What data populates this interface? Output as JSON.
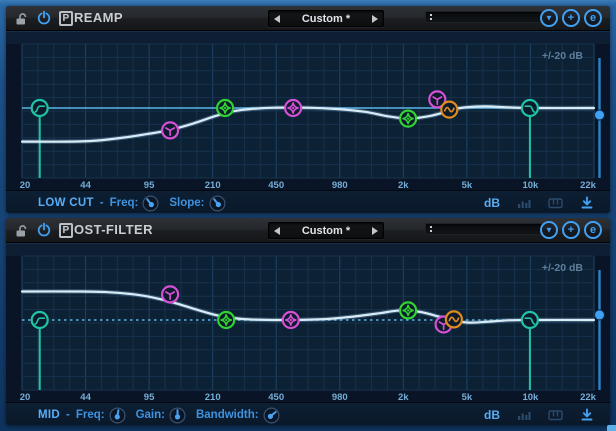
{
  "colors": {
    "teal": "#20c3a6",
    "green": "#31d431",
    "magenta": "#d650d6",
    "orange": "#de8b1f",
    "zero_line": "#5ab5e8",
    "curve": "#d8ecf8",
    "curve_glow": "#8fc5e8",
    "display_bg": "#091526",
    "grid_bg": "#0d2134",
    "grid_major": "#1e4467",
    "grid_minor": "#16324d",
    "axis_text": "#74add6",
    "range_text": "#5f7d98",
    "accent_blue": "#42a0f2",
    "slider_track": "#2b84c6",
    "handle_fill": "#0c1b2c",
    "dim_icon": "#2a4a6b"
  },
  "panels": [
    {
      "title_box": "P",
      "title_rest": "REAMP",
      "preset": {
        "value": "Custom *"
      },
      "header_buttons": {
        "dropdown_glyph": "▼",
        "add_glyph": "+",
        "edit_glyph": "e"
      },
      "display": {
        "range_label": "+/-20 dB",
        "zero_line_style": "solid",
        "axis_ticks": [
          "20",
          "44",
          "95",
          "210",
          "450",
          "980",
          "2k",
          "5k",
          "10k",
          "22k"
        ],
        "output_slider_db": -2.2,
        "curve_db": [
          [
            0,
            -10.5
          ],
          [
            0.08,
            -10.5
          ],
          [
            0.13,
            -10.2
          ],
          [
            0.18,
            -9.2
          ],
          [
            0.23,
            -7.8
          ],
          [
            0.26,
            -6.8
          ],
          [
            0.3,
            -4.8
          ],
          [
            0.34,
            -2.4
          ],
          [
            0.37,
            -1.0
          ],
          [
            0.4,
            -0.3
          ],
          [
            0.44,
            0.1
          ],
          [
            0.5,
            0.1
          ],
          [
            0.55,
            -0.3
          ],
          [
            0.6,
            -1.2
          ],
          [
            0.64,
            -2.6
          ],
          [
            0.675,
            -3.3
          ],
          [
            0.71,
            -2.6
          ],
          [
            0.735,
            -1.5
          ],
          [
            0.75,
            -0.6
          ],
          [
            0.775,
            0.2
          ],
          [
            0.81,
            0.5
          ],
          [
            0.85,
            0.2
          ],
          [
            0.89,
            0
          ],
          [
            1,
            0
          ]
        ],
        "handles": [
          {
            "band": "low-cut",
            "shape": "lowcut",
            "color": "teal",
            "x": 0.031,
            "db": 0,
            "vline": true
          },
          {
            "band": "low-mid",
            "shape": "y",
            "color": "magenta",
            "x": 0.259,
            "db": -7
          },
          {
            "band": "mid-1",
            "shape": "peak",
            "color": "green",
            "x": 0.355,
            "db": 0
          },
          {
            "band": "mid-2",
            "shape": "peak",
            "color": "magenta",
            "x": 0.474,
            "db": 0
          },
          {
            "band": "high-mid-1",
            "shape": "peak",
            "color": "green",
            "x": 0.675,
            "db": -3.3
          },
          {
            "band": "high-mid-2",
            "shape": "y",
            "color": "magenta",
            "x": 0.726,
            "db": 2.7
          },
          {
            "band": "high",
            "shape": "sine",
            "color": "orange",
            "x": 0.747,
            "db": -0.5
          },
          {
            "band": "high-cut",
            "shape": "highcut",
            "color": "teal",
            "x": 0.888,
            "db": 0,
            "vline": true
          }
        ]
      },
      "footer": {
        "band_label": "LOW CUT",
        "separator": "-",
        "params": [
          {
            "label": "Freq:",
            "knob_angle": -38
          },
          {
            "label": "Slope:",
            "knob_angle": -38
          }
        ],
        "db_label": "dB"
      }
    },
    {
      "title_box": "P",
      "title_rest": "OST-FILTER",
      "preset": {
        "value": "Custom *"
      },
      "header_buttons": {
        "dropdown_glyph": "▼",
        "add_glyph": "+",
        "edit_glyph": "e"
      },
      "display": {
        "range_label": "+/-20 dB",
        "zero_line_style": "dashed",
        "axis_ticks": [
          "20",
          "44",
          "95",
          "210",
          "450",
          "980",
          "2k",
          "5k",
          "10k",
          "22k"
        ],
        "output_slider_db": 1.6,
        "curve_db": [
          [
            0,
            8.9
          ],
          [
            0.1,
            8.9
          ],
          [
            0.15,
            8.7
          ],
          [
            0.2,
            7.9
          ],
          [
            0.24,
            6.6
          ],
          [
            0.27,
            5.2
          ],
          [
            0.31,
            3.0
          ],
          [
            0.34,
            1.5
          ],
          [
            0.37,
            0.6
          ],
          [
            0.4,
            0.15
          ],
          [
            0.45,
            0
          ],
          [
            0.52,
            0.2
          ],
          [
            0.57,
            0.9
          ],
          [
            0.62,
            2.0
          ],
          [
            0.655,
            2.9
          ],
          [
            0.675,
            3.0
          ],
          [
            0.7,
            2.4
          ],
          [
            0.73,
            1.0
          ],
          [
            0.755,
            -0.2
          ],
          [
            0.78,
            -0.8
          ],
          [
            0.81,
            -0.6
          ],
          [
            0.85,
            -0.1
          ],
          [
            0.89,
            0
          ],
          [
            1,
            0
          ]
        ],
        "handles": [
          {
            "band": "low-cut",
            "shape": "lowcut",
            "color": "teal",
            "x": 0.031,
            "db": 0,
            "vline": true
          },
          {
            "band": "low-mid",
            "shape": "y",
            "color": "magenta",
            "x": 0.259,
            "db": 8
          },
          {
            "band": "mid-1",
            "shape": "peak",
            "color": "green",
            "x": 0.357,
            "db": 0
          },
          {
            "band": "mid-2",
            "shape": "peak",
            "color": "magenta",
            "x": 0.47,
            "db": 0
          },
          {
            "band": "high-mid-1",
            "shape": "peak",
            "color": "green",
            "x": 0.675,
            "db": 3.0
          },
          {
            "band": "high-mid-2",
            "shape": "y",
            "color": "magenta",
            "x": 0.737,
            "db": -1.4
          },
          {
            "band": "high",
            "shape": "sine",
            "color": "orange",
            "x": 0.755,
            "db": 0.2
          },
          {
            "band": "high-cut",
            "shape": "highcut",
            "color": "teal",
            "x": 0.888,
            "db": 0,
            "vline": true
          }
        ]
      },
      "footer": {
        "band_label": "MID",
        "separator": "-",
        "params": [
          {
            "label": "Freq:",
            "knob_angle": 10
          },
          {
            "label": "Gain:",
            "knob_angle": 0
          },
          {
            "label": "Bandwidth:",
            "knob_angle": 50
          }
        ],
        "db_label": "dB"
      }
    }
  ]
}
